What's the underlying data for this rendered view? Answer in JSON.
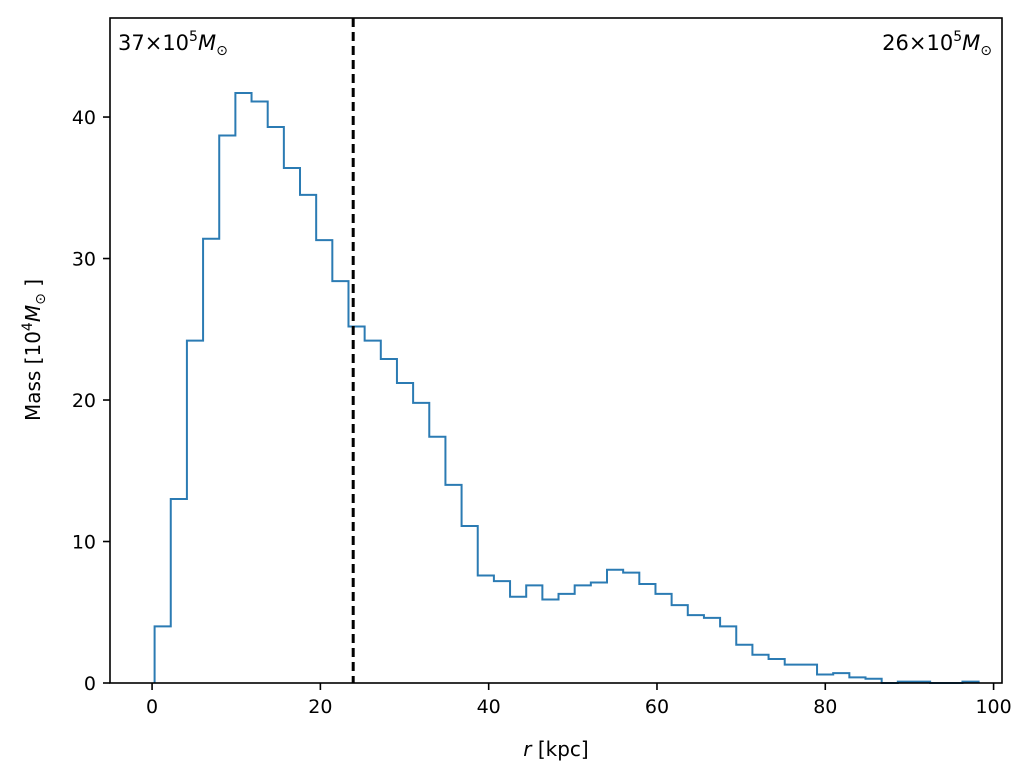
{
  "chart_data": {
    "type": "histogram",
    "xlabel_italic": "r",
    "xlabel_rest": "[kpc]",
    "ylabel_lead": "Mass [10",
    "ylabel_exp": "4",
    "ylabel_unit": "M",
    "ylabel_sub": "⊙",
    "ylabel_close": "]",
    "xlim": [
      -5,
      101
    ],
    "ylim": [
      0,
      47
    ],
    "xticks": [
      0,
      20,
      40,
      60,
      80,
      100
    ],
    "yticks": [
      0,
      10,
      20,
      30,
      40
    ],
    "bin_start": 0.3,
    "bin_width": 1.92,
    "values": [
      4.0,
      13.0,
      24.2,
      31.4,
      38.7,
      41.7,
      41.1,
      39.3,
      36.4,
      34.5,
      31.3,
      28.4,
      25.2,
      24.2,
      22.9,
      21.2,
      19.8,
      17.4,
      14.0,
      11.1,
      7.6,
      7.2,
      6.1,
      6.9,
      5.9,
      6.3,
      6.9,
      7.1,
      8.0,
      7.8,
      7.0,
      6.3,
      5.5,
      4.8,
      4.6,
      4.0,
      2.7,
      2.0,
      1.7,
      1.3,
      1.3,
      0.6,
      0.7,
      0.4,
      0.3,
      0.0,
      0.1,
      0.1,
      0.0,
      0.0,
      0.1
    ],
    "line_color": "#2b7bb3",
    "vline_x": 23.9,
    "vline_color": "#000000",
    "annotation_left": {
      "num": "37×10",
      "exp": "5",
      "unit": "M",
      "sub": "⊙"
    },
    "annotation_right": {
      "num": "26×10",
      "exp": "5",
      "unit": "M",
      "sub": "⊙"
    }
  }
}
